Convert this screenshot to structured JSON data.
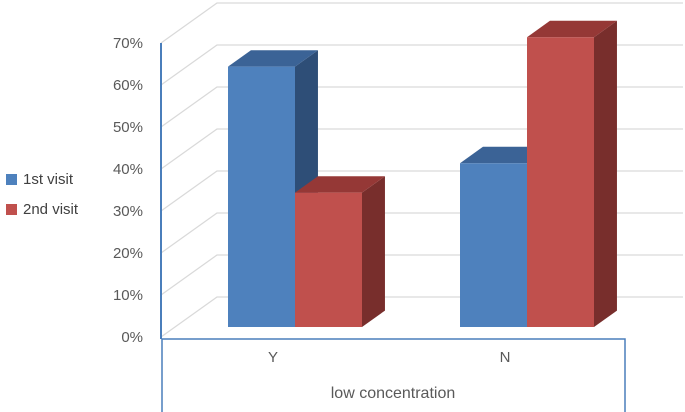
{
  "chart_data": {
    "type": "bar",
    "variant": "3d-clustered-column",
    "title": "",
    "categories": [
      "Y",
      "N"
    ],
    "series": [
      {
        "name": "1st visit",
        "values": [
          62,
          39
        ]
      },
      {
        "name": "2nd visit",
        "values": [
          32,
          69
        ]
      }
    ],
    "xlabel": "low concentration",
    "ylabel": "",
    "ylim": [
      0,
      70
    ],
    "ytick_step": 10,
    "ytick_labels": [
      "0%",
      "10%",
      "20%",
      "30%",
      "40%",
      "50%",
      "60%",
      "70%"
    ],
    "grid": true,
    "legend_position": "left"
  },
  "legend": {
    "items": [
      {
        "label": "1st visit"
      },
      {
        "label": "2nd visit"
      }
    ]
  },
  "colors": {
    "series": [
      {
        "front": "#4E81BD",
        "top": "#3B6396",
        "side": "#2E4E77"
      },
      {
        "front": "#C0504D",
        "top": "#953836",
        "side": "#782E2C"
      }
    ],
    "gridline": "#D9D9D9",
    "axis_line": "#4A7EBB",
    "category_box_border": "#4A7EBB",
    "tick_text": "#595959",
    "category_text": "#595959",
    "xlabel_text": "#595959",
    "legend_text": "#404040"
  }
}
